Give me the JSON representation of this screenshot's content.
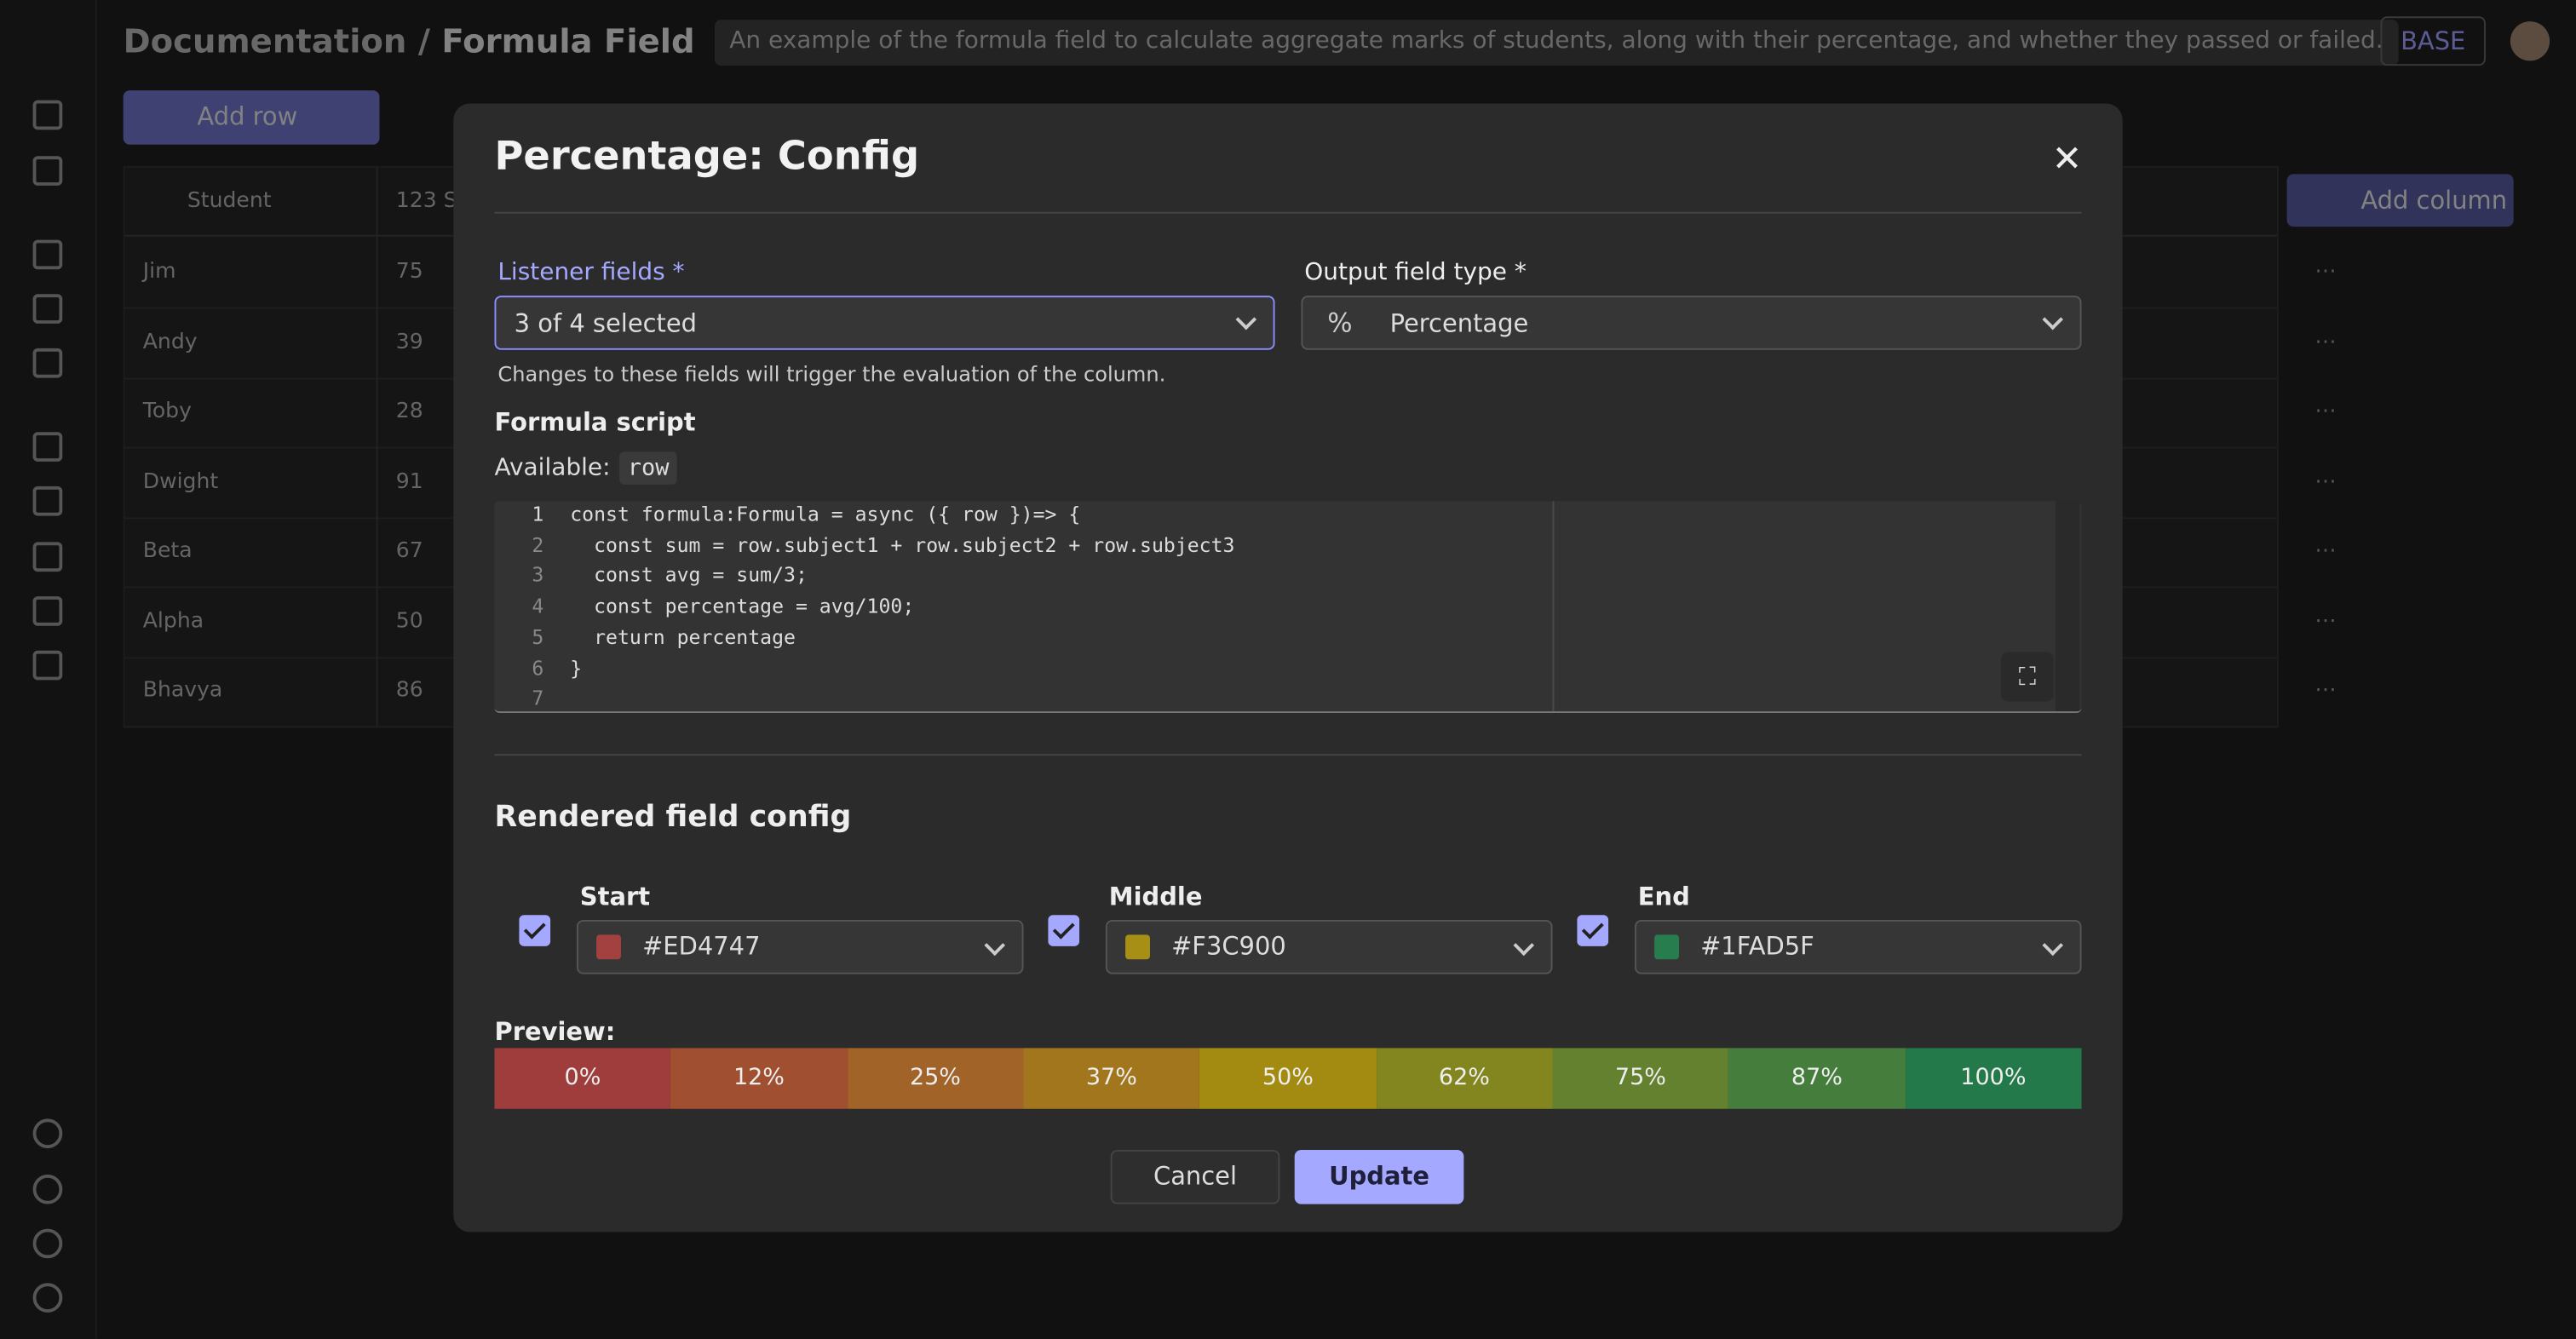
{
  "header": {
    "breadcrumb": [
      "Documentation",
      "/",
      "Formula Field"
    ],
    "description": "An example of the formula field to calculate aggregate marks of students, along with their percentage, and whether they passed or failed.",
    "badge": "BASE"
  },
  "toolbar": {
    "add_row": "Add row",
    "add_column": "Add column"
  },
  "table": {
    "columns": [
      "Student",
      "123 S"
    ],
    "rows": [
      [
        "Jim",
        "75"
      ],
      [
        "Andy",
        "39"
      ],
      [
        "Toby",
        "28"
      ],
      [
        "Dwight",
        "91"
      ],
      [
        "Beta",
        "67"
      ],
      [
        "Alpha",
        "50"
      ],
      [
        "Bhavya",
        "86"
      ]
    ]
  },
  "modal": {
    "title": "Percentage: Config",
    "listener": {
      "label": "Listener fields *",
      "value": "3 of 4 selected",
      "help": "Changes to these fields will trigger the evaluation of the column."
    },
    "output": {
      "label": "Output field type *",
      "value": "Percentage"
    },
    "formula": {
      "label": "Formula script",
      "available_label": "Available:",
      "available_value": "row",
      "lines": [
        {
          "n": "1",
          "text": "const formula:Formula = async ({ row })=> {"
        },
        {
          "n": "2",
          "text": "  const sum = row.subject1 + row.subject2 + row.subject3"
        },
        {
          "n": "3",
          "text": "  const avg = sum/3;"
        },
        {
          "n": "4",
          "text": "  const percentage = avg/100;"
        },
        {
          "n": "5",
          "text": "  return percentage"
        },
        {
          "n": "6",
          "text": "}"
        },
        {
          "n": "7",
          "text": ""
        }
      ]
    },
    "rendered": {
      "title": "Rendered field config",
      "stops": [
        {
          "label": "Start",
          "color": "#ED4747"
        },
        {
          "label": "Middle",
          "color": "#F3C900"
        },
        {
          "label": "End",
          "color": "#1FAD5F"
        }
      ]
    },
    "preview": {
      "label": "Preview:",
      "cells": [
        "0%",
        "12%",
        "25%",
        "37%",
        "50%",
        "62%",
        "75%",
        "87%",
        "100%"
      ]
    },
    "cancel": "Cancel",
    "update": "Update"
  }
}
